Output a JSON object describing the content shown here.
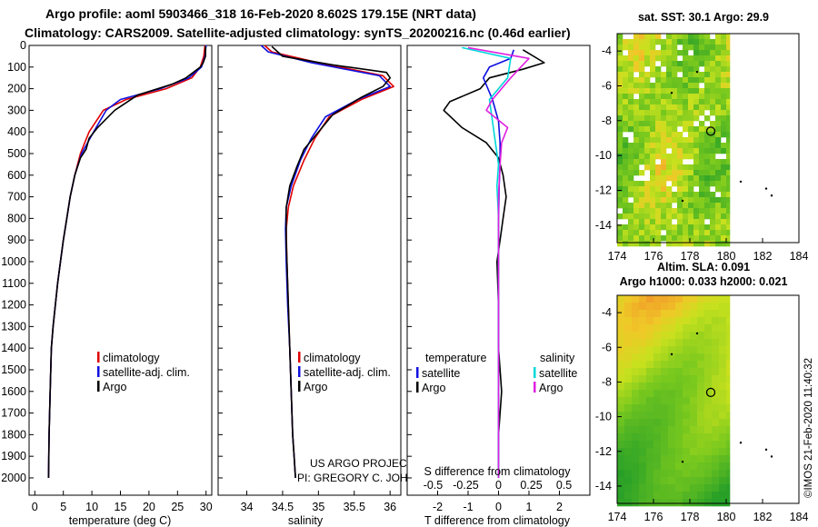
{
  "header": {
    "title_line1": "Argo profile: aoml 5903466_318 16-Feb-2020 8.602S 179.15E (NRT data)",
    "title_line2": "Climatology: CARS2009. Satellite-adjusted climatology: synTS_20200216.nc (0.46d earlier)"
  },
  "credits": {
    "project": "US ARGO PROJECT",
    "pi": "PI: GREGORY C. JOHNSON",
    "imos": "©IMOS 21-Feb-2020 11:40:32"
  },
  "colors": {
    "argo": "#000000",
    "climatology": "#e00000",
    "satellite": "#1010e0",
    "sal_diff_satellite": "#00d8d8",
    "sal_diff_clim": "#e020e0"
  },
  "chart_data": [
    {
      "id": "temperature",
      "type": "line",
      "xlabel": "temperature (deg C)",
      "ylabel": "",
      "xlim": [
        -1,
        31
      ],
      "ylim": [
        2080,
        0
      ],
      "xticks": [
        "0",
        "5",
        "10",
        "15",
        "20",
        "25",
        "30"
      ],
      "xtick_values": [
        0,
        5,
        10,
        15,
        20,
        25,
        30
      ],
      "yticks": [
        "0",
        "100",
        "200",
        "300",
        "400",
        "500",
        "600",
        "700",
        "800",
        "900",
        "1000",
        "1100",
        "1200",
        "1300",
        "1400",
        "1500",
        "1600",
        "1700",
        "1800",
        "1900",
        "2000"
      ],
      "ytick_values": [
        0,
        100,
        200,
        300,
        400,
        500,
        600,
        700,
        800,
        900,
        1000,
        1100,
        1200,
        1300,
        1400,
        1500,
        1600,
        1700,
        1800,
        1900,
        2000
      ],
      "legend": [
        "climatology",
        "satellite-adj. clim.",
        "Argo"
      ],
      "series": [
        {
          "name": "climatology",
          "color": "#e00000",
          "x": [
            29.8,
            29.6,
            29.0,
            27.5,
            23.0,
            16.0,
            12.0,
            9.5,
            8.0,
            7.0,
            6.2,
            5.6,
            5.0,
            4.5,
            4.0,
            3.6,
            3.2,
            2.9,
            2.7,
            2.5,
            2.4
          ],
          "y": [
            0,
            50,
            100,
            150,
            200,
            250,
            300,
            400,
            500,
            600,
            700,
            800,
            900,
            1000,
            1100,
            1200,
            1300,
            1400,
            1600,
            1800,
            2000
          ]
        },
        {
          "name": "satellite-adj. clim.",
          "color": "#1010e0",
          "x": [
            30.0,
            29.8,
            29.2,
            27.0,
            22.0,
            15.0,
            12.5,
            10.3,
            8.2,
            7.0,
            6.2,
            5.6,
            5.0,
            4.5,
            4.0,
            3.6,
            3.2,
            2.9,
            2.7,
            2.5,
            2.4
          ],
          "y": [
            0,
            50,
            100,
            150,
            200,
            250,
            300,
            400,
            500,
            600,
            700,
            800,
            900,
            1000,
            1100,
            1200,
            1300,
            1400,
            1600,
            1800,
            2000
          ]
        },
        {
          "name": "Argo",
          "color": "#000000",
          "x": [
            29.9,
            29.9,
            29.5,
            29.0,
            26.5,
            24.0,
            18.0,
            14.0,
            11.0,
            9.5,
            9.0,
            8.0,
            7.0,
            6.2,
            5.6,
            5.0,
            4.0,
            3.6,
            3.2,
            2.9,
            2.7,
            2.5,
            2.4
          ],
          "y": [
            5,
            50,
            80,
            100,
            150,
            180,
            230,
            300,
            380,
            430,
            480,
            520,
            600,
            700,
            800,
            900,
            1100,
            1200,
            1300,
            1400,
            1600,
            1800,
            2000
          ]
        }
      ]
    },
    {
      "id": "salinity",
      "type": "line",
      "xlabel": "salinity",
      "ylabel": "",
      "xlim": [
        33.6,
        36.15
      ],
      "ylim": [
        2080,
        0
      ],
      "xticks": [
        "34",
        "34.5",
        "35",
        "35.5",
        "36"
      ],
      "xtick_values": [
        34,
        34.5,
        35,
        35.5,
        36
      ],
      "legend": [
        "climatology",
        "satellite-adj. clim.",
        "Argo"
      ],
      "series": [
        {
          "name": "climatology",
          "color": "#e00000",
          "x": [
            34.25,
            34.35,
            35.0,
            35.9,
            36.05,
            35.6,
            35.15,
            34.95,
            34.8,
            34.65,
            34.58,
            34.55,
            34.56,
            34.58,
            34.6,
            34.62,
            34.64,
            34.66,
            34.68
          ],
          "y": [
            0,
            30,
            80,
            140,
            190,
            250,
            330,
            430,
            530,
            650,
            750,
            850,
            1000,
            1200,
            1400,
            1600,
            1800,
            1900,
            2000
          ]
        },
        {
          "name": "satellite-adj. clim.",
          "color": "#1010e0",
          "x": [
            34.2,
            34.3,
            34.9,
            35.85,
            36.0,
            35.55,
            35.1,
            34.9,
            34.75,
            34.62,
            34.55,
            34.54,
            34.55,
            34.57,
            34.6,
            34.62,
            34.64,
            34.66,
            34.68
          ],
          "y": [
            0,
            30,
            80,
            140,
            190,
            250,
            330,
            430,
            530,
            650,
            750,
            850,
            1000,
            1200,
            1400,
            1600,
            1800,
            1900,
            2000
          ]
        },
        {
          "name": "Argo",
          "color": "#000000",
          "x": [
            34.35,
            34.5,
            35.2,
            35.95,
            36.0,
            35.9,
            35.6,
            35.2,
            35.0,
            34.8,
            34.7,
            34.6,
            34.55,
            34.55,
            34.57,
            34.6,
            34.62,
            34.64,
            34.66,
            34.68
          ],
          "y": [
            5,
            50,
            90,
            125,
            150,
            190,
            240,
            320,
            400,
            480,
            560,
            650,
            750,
            900,
            1100,
            1400,
            1600,
            1800,
            1900,
            2000
          ]
        }
      ]
    },
    {
      "id": "differences",
      "type": "line",
      "xlabel": "T difference from climatology",
      "xlabel_top": "S difference from climatology",
      "xlim": [
        -3,
        3
      ],
      "ylim": [
        2080,
        0
      ],
      "xticks": [
        "-2",
        "-1",
        "0",
        "1",
        "2"
      ],
      "xtick_values": [
        -2,
        -1,
        0,
        1,
        2
      ],
      "xticks_top": [
        "-0.5",
        "-0.25",
        "0",
        "0.25",
        "0.5"
      ],
      "xtick_top_values": [
        -0.5,
        -0.25,
        0,
        0.25,
        0.5
      ],
      "legend_headers": [
        "temperature",
        "salinity"
      ],
      "legend_left": [
        "satellite",
        "Argo"
      ],
      "legend_right": [
        "satellite",
        "Argo"
      ],
      "series": [
        {
          "name": "T Argo - clim",
          "color": "#000000",
          "x": [
            0.8,
            1.5,
            0.8,
            -0.3,
            -0.6,
            -1.6,
            -1.8,
            -1.2,
            -0.4,
            0.0,
            0.15,
            0.25,
            0.15,
            0.05,
            -0.05,
            0.0,
            0.0,
            0.1,
            0.0,
            0.0
          ],
          "y": [
            20,
            80,
            110,
            150,
            200,
            260,
            300,
            380,
            450,
            520,
            600,
            700,
            800,
            900,
            1000,
            1200,
            1400,
            1600,
            1800,
            2000
          ]
        },
        {
          "name": "T Argo - satellite",
          "color": "#1010e0",
          "x": [
            0.5,
            0.4,
            -0.3,
            -0.5,
            -0.2,
            0.0,
            0.05,
            0.05,
            0.02,
            0.0,
            0.0,
            0.0,
            0.0,
            0.0
          ],
          "y": [
            20,
            60,
            100,
            150,
            250,
            350,
            450,
            550,
            650,
            800,
            1000,
            1400,
            1800,
            2000
          ]
        },
        {
          "name": "S Argo - satellite",
          "color": "#00d8d8",
          "x": [
            -1.2,
            0.4,
            0.3,
            -0.3,
            -0.2,
            -0.1,
            0.0,
            -0.05,
            0.0,
            0.0,
            0.0
          ],
          "y": [
            10,
            60,
            150,
            250,
            350,
            450,
            550,
            650,
            800,
            1200,
            2000
          ]
        },
        {
          "name": "S Argo - clim",
          "color": "#e020e0",
          "x": [
            -1.0,
            1.0,
            0.4,
            -0.2,
            -0.4,
            0.3,
            0.1,
            0.05,
            0.0,
            0.0,
            0.0
          ],
          "y": [
            10,
            60,
            150,
            250,
            300,
            380,
            450,
            550,
            700,
            1200,
            2000
          ]
        }
      ]
    },
    {
      "id": "sst_map",
      "type": "heatmap",
      "title": "sat. SST: 30.1 Argo: 29.9",
      "xlim": [
        174,
        184
      ],
      "ylim": [
        -15,
        -3
      ],
      "xticks": [
        "174",
        "176",
        "178",
        "180",
        "182",
        "184"
      ],
      "xtick_values": [
        174,
        176,
        178,
        180,
        182,
        184
      ],
      "yticks": [
        "-4",
        "-6",
        "-8",
        "-10",
        "-12",
        "-14"
      ],
      "ytick_values": [
        -4,
        -6,
        -8,
        -10,
        -12,
        -14
      ],
      "data_extent_east": 180.2,
      "float_position": [
        179.15,
        -8.602
      ]
    },
    {
      "id": "sla_map",
      "type": "heatmap",
      "title_line1": "Altim. SLA: 0.091",
      "title_line2": "Argo h1000: 0.033 h2000: 0.021",
      "xlim": [
        174,
        184
      ],
      "ylim": [
        -15,
        -3
      ],
      "xticks": [
        "174",
        "176",
        "178",
        "180",
        "182",
        "184"
      ],
      "xtick_values": [
        174,
        176,
        178,
        180,
        182,
        184
      ],
      "yticks": [
        "-4",
        "-6",
        "-8",
        "-10",
        "-12",
        "-14"
      ],
      "ytick_values": [
        -4,
        -6,
        -8,
        -10,
        -12,
        -14
      ],
      "data_extent_east": 180.2,
      "float_position": [
        179.15,
        -8.602
      ]
    }
  ]
}
